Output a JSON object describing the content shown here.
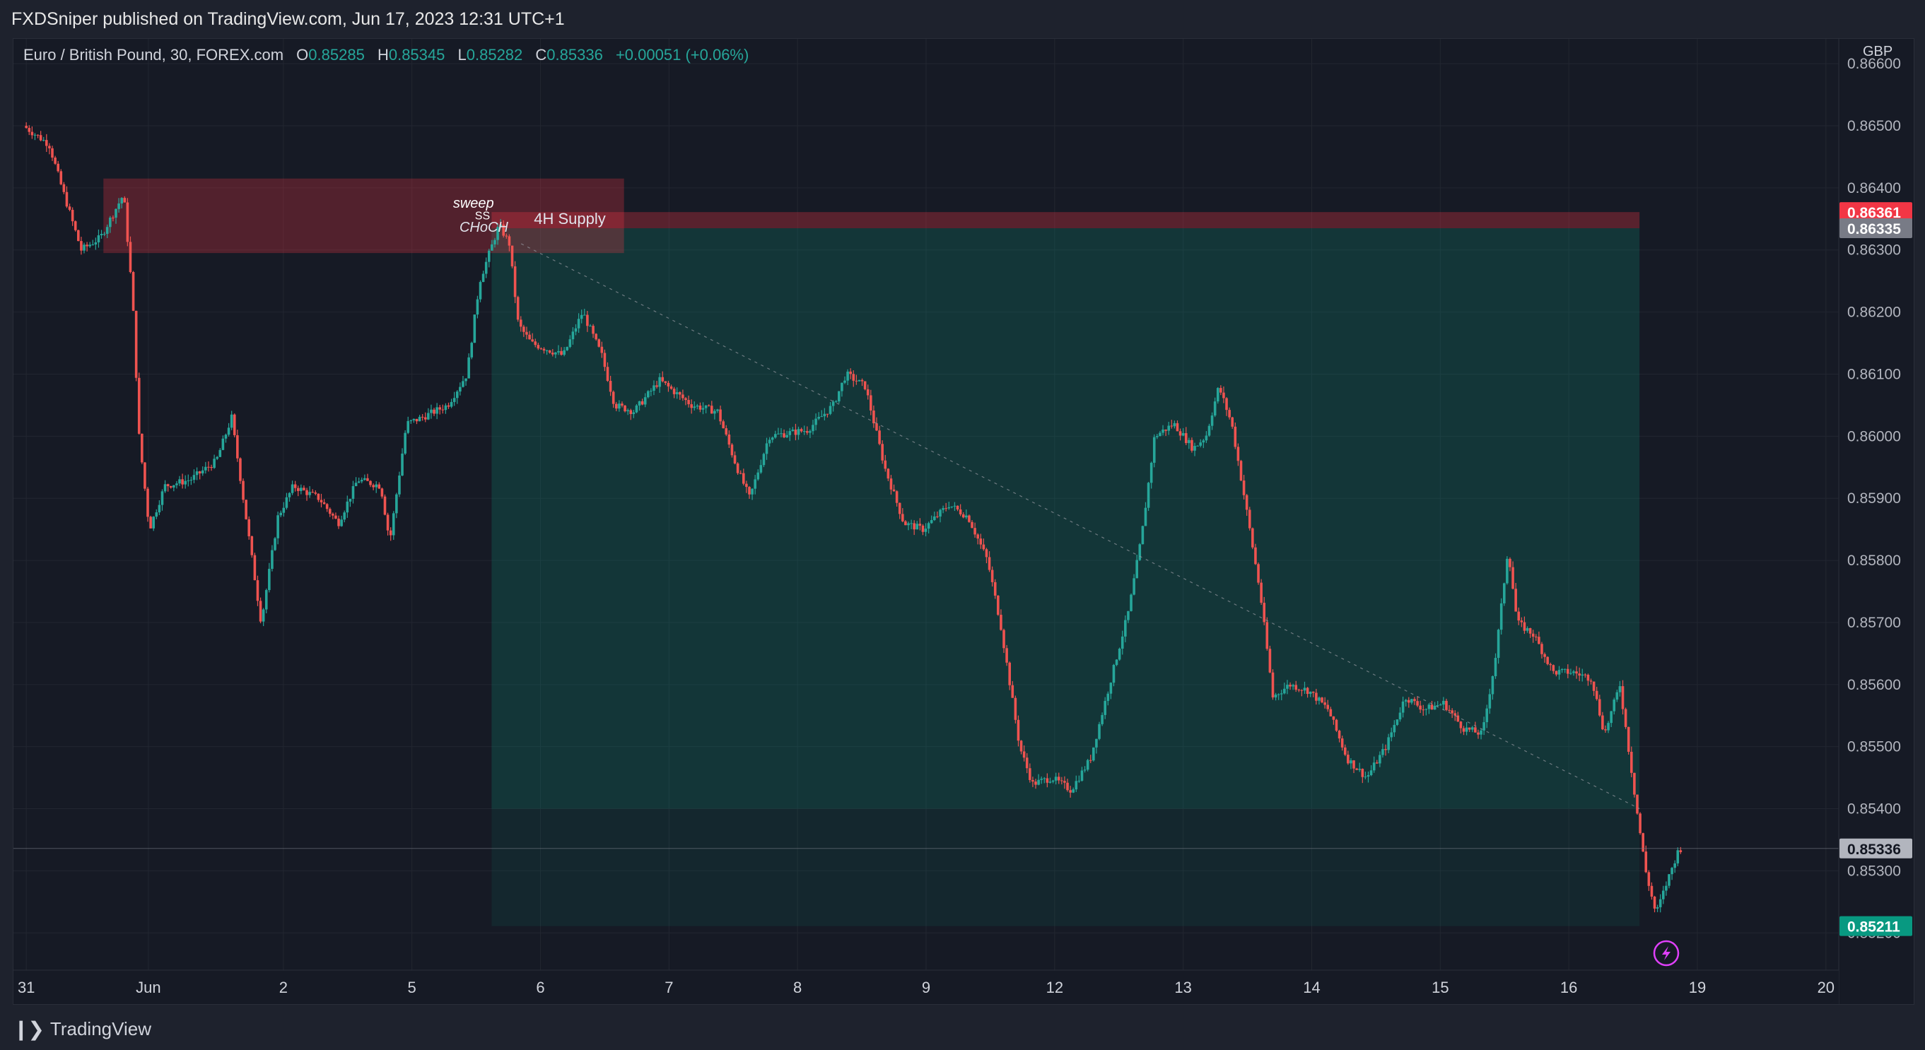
{
  "header": {
    "published_by": "FXDSniper published on TradingView.com, Jun 17, 2023 12:31 UTC+1"
  },
  "legend": {
    "symbol": "Euro / British Pound, 30, FOREX.com",
    "o_label": "O",
    "o_value": "0.85285",
    "h_label": "H",
    "h_value": "0.85345",
    "l_label": "L",
    "l_value": "0.85282",
    "c_label": "C",
    "c_value": "0.85336",
    "change": "+0.00051 (+0.06%)"
  },
  "price_axis": {
    "currency": "GBP",
    "ticks": [
      "0.86600",
      "0.86500",
      "0.86400",
      "0.86300",
      "0.86200",
      "0.86100",
      "0.86000",
      "0.85900",
      "0.85800",
      "0.85700",
      "0.85600",
      "0.85500",
      "0.85400",
      "0.85300",
      "0.85200"
    ],
    "badges": [
      {
        "value": "0.86361",
        "price": 0.86361,
        "color": "#f23645"
      },
      {
        "value": "0.86335",
        "price": 0.86335,
        "color": "#787b86"
      },
      {
        "value": "0.85336",
        "price": 0.85336,
        "color": "#b2b5be"
      },
      {
        "value": "0.85211",
        "price": 0.85211,
        "color": "#089981"
      }
    ]
  },
  "time_axis": {
    "labels": [
      "31",
      "Jun",
      "2",
      "5",
      "6",
      "7",
      "8",
      "9",
      "12",
      "13",
      "14",
      "15",
      "16",
      "19",
      "20"
    ],
    "label_index": [
      0,
      0.95,
      2,
      3,
      4,
      5,
      6,
      7,
      8,
      9,
      10,
      11,
      12,
      13,
      14
    ]
  },
  "annotations": {
    "supply_zone_label": "4H Supply",
    "sweep_label": "sweep",
    "ss_label": "SS",
    "choch_label": "CHoCH"
  },
  "colors": {
    "bull": "#26a69a",
    "bear": "#ef5350",
    "supply_zone": "#f23645",
    "target_zone": "#089981",
    "stop_zone": "#f23645"
  },
  "chart_data": {
    "type": "candlestick",
    "xlabel": "",
    "ylabel": "",
    "ylim": [
      0.8514,
      0.8664
    ],
    "x_domain": [
      -0.1,
      14.1
    ],
    "zones": {
      "supply": {
        "x0": 0.6,
        "x1": 4.65,
        "y0": 0.86295,
        "y1": 0.86415
      },
      "position_stop": {
        "x0": 3.62,
        "x1": 12.55,
        "y0": 0.86335,
        "y1": 0.86361
      },
      "position_target": {
        "x0": 3.62,
        "x1": 12.55,
        "y0": 0.854,
        "y1": 0.86335
      },
      "position_after": {
        "x0": 3.62,
        "x1": 12.55,
        "y0": 0.85211,
        "y1": 0.854
      }
    },
    "trendline": {
      "x0": 3.85,
      "y0": 0.8631,
      "x1": 12.55,
      "y1": 0.854
    },
    "price_path": [
      {
        "t": 0.0,
        "p": 0.865
      },
      {
        "t": 0.2,
        "p": 0.8647
      },
      {
        "t": 0.3,
        "p": 0.864
      },
      {
        "t": 0.45,
        "p": 0.863
      },
      {
        "t": 0.6,
        "p": 0.8632
      },
      {
        "t": 0.78,
        "p": 0.8639
      },
      {
        "t": 0.85,
        "p": 0.8622
      },
      {
        "t": 0.9,
        "p": 0.86
      },
      {
        "t": 0.98,
        "p": 0.8585
      },
      {
        "t": 1.1,
        "p": 0.8592
      },
      {
        "t": 1.3,
        "p": 0.8593
      },
      {
        "t": 1.5,
        "p": 0.8596
      },
      {
        "t": 1.62,
        "p": 0.8603
      },
      {
        "t": 1.78,
        "p": 0.858
      },
      {
        "t": 1.85,
        "p": 0.857
      },
      {
        "t": 1.98,
        "p": 0.8587
      },
      {
        "t": 2.1,
        "p": 0.8592
      },
      {
        "t": 2.3,
        "p": 0.859
      },
      {
        "t": 2.45,
        "p": 0.8586
      },
      {
        "t": 2.6,
        "p": 0.8593
      },
      {
        "t": 2.78,
        "p": 0.8592
      },
      {
        "t": 2.85,
        "p": 0.8583
      },
      {
        "t": 2.98,
        "p": 0.8602
      },
      {
        "t": 3.1,
        "p": 0.8603
      },
      {
        "t": 3.3,
        "p": 0.8605
      },
      {
        "t": 3.45,
        "p": 0.861
      },
      {
        "t": 3.55,
        "p": 0.8625
      },
      {
        "t": 3.7,
        "p": 0.8634
      },
      {
        "t": 3.78,
        "p": 0.8631
      },
      {
        "t": 3.85,
        "p": 0.8618
      },
      {
        "t": 3.95,
        "p": 0.8615
      },
      {
        "t": 4.2,
        "p": 0.8613
      },
      {
        "t": 4.35,
        "p": 0.862
      },
      {
        "t": 4.5,
        "p": 0.8613
      },
      {
        "t": 4.6,
        "p": 0.8605
      },
      {
        "t": 4.75,
        "p": 0.8604
      },
      {
        "t": 4.95,
        "p": 0.8609
      },
      {
        "t": 5.2,
        "p": 0.8605
      },
      {
        "t": 5.4,
        "p": 0.8604
      },
      {
        "t": 5.55,
        "p": 0.8595
      },
      {
        "t": 5.65,
        "p": 0.859
      },
      {
        "t": 5.8,
        "p": 0.86
      },
      {
        "t": 6.1,
        "p": 0.8601
      },
      {
        "t": 6.3,
        "p": 0.8605
      },
      {
        "t": 6.4,
        "p": 0.861
      },
      {
        "t": 6.55,
        "p": 0.8608
      },
      {
        "t": 6.7,
        "p": 0.8595
      },
      {
        "t": 6.85,
        "p": 0.8586
      },
      {
        "t": 7.0,
        "p": 0.8585
      },
      {
        "t": 7.2,
        "p": 0.8589
      },
      {
        "t": 7.35,
        "p": 0.8587
      },
      {
        "t": 7.5,
        "p": 0.858
      },
      {
        "t": 7.6,
        "p": 0.857
      },
      {
        "t": 7.75,
        "p": 0.855
      },
      {
        "t": 7.85,
        "p": 0.8544
      },
      {
        "t": 8.0,
        "p": 0.8545
      },
      {
        "t": 8.15,
        "p": 0.8543
      },
      {
        "t": 8.3,
        "p": 0.8548
      },
      {
        "t": 8.45,
        "p": 0.856
      },
      {
        "t": 8.6,
        "p": 0.8572
      },
      {
        "t": 8.7,
        "p": 0.8584
      },
      {
        "t": 8.8,
        "p": 0.86
      },
      {
        "t": 8.95,
        "p": 0.8602
      },
      {
        "t": 9.1,
        "p": 0.8598
      },
      {
        "t": 9.2,
        "p": 0.86
      },
      {
        "t": 9.3,
        "p": 0.8608
      },
      {
        "t": 9.4,
        "p": 0.8602
      },
      {
        "t": 9.5,
        "p": 0.859
      },
      {
        "t": 9.62,
        "p": 0.8575
      },
      {
        "t": 9.72,
        "p": 0.8558
      },
      {
        "t": 9.85,
        "p": 0.856
      },
      {
        "t": 10.0,
        "p": 0.8559
      },
      {
        "t": 10.15,
        "p": 0.8556
      },
      {
        "t": 10.3,
        "p": 0.8548
      },
      {
        "t": 10.45,
        "p": 0.8545
      },
      {
        "t": 10.6,
        "p": 0.855
      },
      {
        "t": 10.75,
        "p": 0.8558
      },
      {
        "t": 10.9,
        "p": 0.8556
      },
      {
        "t": 11.05,
        "p": 0.8557
      },
      {
        "t": 11.2,
        "p": 0.8553
      },
      {
        "t": 11.35,
        "p": 0.8552
      },
      {
        "t": 11.45,
        "p": 0.8564
      },
      {
        "t": 11.55,
        "p": 0.8582
      },
      {
        "t": 11.62,
        "p": 0.857
      },
      {
        "t": 11.75,
        "p": 0.8568
      },
      {
        "t": 11.9,
        "p": 0.8562
      },
      {
        "t": 12.05,
        "p": 0.8562
      },
      {
        "t": 12.2,
        "p": 0.8561
      },
      {
        "t": 12.3,
        "p": 0.8552
      },
      {
        "t": 12.42,
        "p": 0.856
      },
      {
        "t": 12.55,
        "p": 0.854
      },
      {
        "t": 12.62,
        "p": 0.853
      },
      {
        "t": 12.7,
        "p": 0.8523
      },
      {
        "t": 12.8,
        "p": 0.8529
      },
      {
        "t": 12.88,
        "p": 0.85336
      }
    ]
  }
}
